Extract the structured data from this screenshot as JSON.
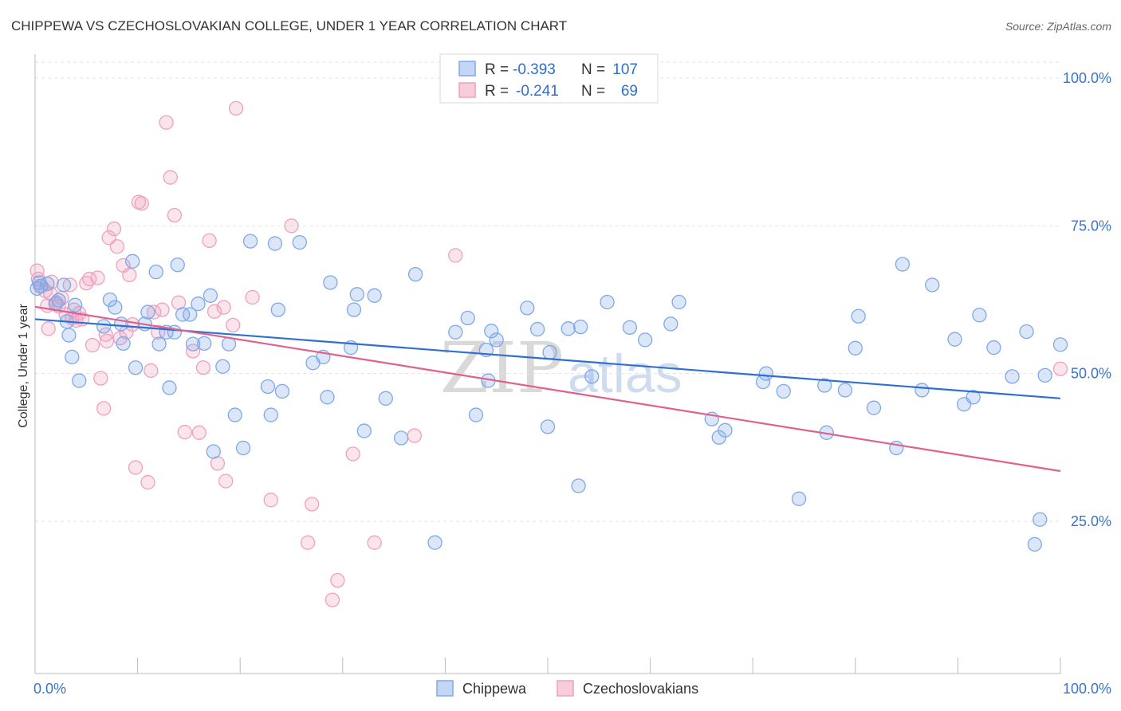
{
  "chart_data": {
    "type": "scatter",
    "title": "CHIPPEWA VS CZECHOSLOVAKIAN COLLEGE, UNDER 1 YEAR CORRELATION CHART",
    "source": "Source: ZipAtlas.com",
    "ylabel": "College, Under 1 year",
    "xlabel": "",
    "xlim": [
      0,
      100
    ],
    "ylim": [
      0,
      105
    ],
    "y_ticks": [
      {
        "value": 100,
        "label": "100.0%"
      },
      {
        "value": 75,
        "label": "75.0%"
      },
      {
        "value": 50,
        "label": "50.0%"
      },
      {
        "value": 25,
        "label": "25.0%"
      }
    ],
    "x_tick_labels": {
      "min": "0.0%",
      "max": "100.0%"
    },
    "grid": true,
    "legend_position": "top-center",
    "watermark": {
      "zip": "ZIP",
      "atlas": "atlas"
    },
    "colors": {
      "chippewa": "#7fa8e8",
      "chippewa_line": "#2f6fd0",
      "czech": "#f0a0bd",
      "czech_line": "#e0608e",
      "grid": "#e3e3e3",
      "axis_text": "#3a74c8"
    },
    "legend": [
      {
        "r_label": "R = ",
        "r_value": "-0.393",
        "n_label": "N = ",
        "n_value": "107"
      },
      {
        "r_label": "R = ",
        "r_value": "-0.241",
        "n_label": "N = ",
        "n_value": "69"
      }
    ],
    "series": [
      {
        "name": "Chippewa",
        "trend": [
          [
            0,
            59.2
          ],
          [
            100,
            45.8
          ]
        ],
        "points": [
          [
            0.2,
            64.4
          ],
          [
            0.4,
            65.4
          ],
          [
            0.6,
            64.8
          ],
          [
            1.2,
            65.2
          ],
          [
            2.0,
            61.8
          ],
          [
            2.3,
            62.4
          ],
          [
            2.8,
            65.0
          ],
          [
            3.1,
            58.8
          ],
          [
            3.3,
            56.5
          ],
          [
            3.6,
            52.8
          ],
          [
            3.9,
            61.6
          ],
          [
            4.3,
            48.8
          ],
          [
            6.7,
            58.0
          ],
          [
            7.3,
            62.5
          ],
          [
            7.8,
            61.2
          ],
          [
            8.4,
            58.4
          ],
          [
            8.6,
            55.1
          ],
          [
            9.5,
            69.0
          ],
          [
            9.8,
            51.0
          ],
          [
            10.7,
            58.4
          ],
          [
            11.0,
            60.4
          ],
          [
            11.8,
            67.2
          ],
          [
            12.1,
            55.0
          ],
          [
            12.8,
            57.0
          ],
          [
            13.1,
            47.6
          ],
          [
            13.6,
            57.0
          ],
          [
            13.9,
            68.4
          ],
          [
            14.4,
            60.0
          ],
          [
            15.1,
            60.0
          ],
          [
            15.4,
            55.0
          ],
          [
            15.9,
            61.8
          ],
          [
            16.5,
            55.1
          ],
          [
            17.1,
            63.2
          ],
          [
            17.4,
            36.8
          ],
          [
            18.3,
            51.2
          ],
          [
            18.9,
            55.0
          ],
          [
            19.5,
            43.0
          ],
          [
            20.3,
            37.4
          ],
          [
            21.0,
            72.4
          ],
          [
            22.7,
            47.8
          ],
          [
            23.0,
            43.0
          ],
          [
            23.4,
            72.0
          ],
          [
            23.7,
            60.8
          ],
          [
            24.1,
            47.0
          ],
          [
            25.8,
            72.2
          ],
          [
            27.1,
            51.8
          ],
          [
            28.1,
            52.8
          ],
          [
            28.5,
            46.0
          ],
          [
            28.8,
            65.4
          ],
          [
            30.8,
            54.4
          ],
          [
            31.1,
            60.8
          ],
          [
            31.4,
            63.4
          ],
          [
            32.1,
            40.3
          ],
          [
            33.1,
            63.2
          ],
          [
            34.2,
            45.8
          ],
          [
            35.7,
            39.1
          ],
          [
            37.1,
            66.8
          ],
          [
            39.0,
            21.4
          ],
          [
            41.0,
            57.0
          ],
          [
            42.2,
            59.4
          ],
          [
            43.0,
            43.0
          ],
          [
            44.0,
            54.0
          ],
          [
            44.2,
            48.8
          ],
          [
            44.5,
            57.2
          ],
          [
            45.0,
            55.7
          ],
          [
            48.0,
            61.1
          ],
          [
            49.0,
            57.5
          ],
          [
            50.0,
            41.0
          ],
          [
            50.2,
            53.6
          ],
          [
            52.0,
            57.6
          ],
          [
            53.0,
            31.0
          ],
          [
            53.2,
            57.9
          ],
          [
            54.3,
            49.5
          ],
          [
            55.8,
            62.1
          ],
          [
            58.0,
            57.8
          ],
          [
            59.5,
            55.7
          ],
          [
            62.0,
            58.4
          ],
          [
            62.8,
            62.1
          ],
          [
            66.0,
            42.3
          ],
          [
            66.7,
            39.2
          ],
          [
            67.3,
            40.4
          ],
          [
            71.0,
            48.6
          ],
          [
            71.3,
            50.0
          ],
          [
            73.0,
            47.0
          ],
          [
            74.5,
            28.8
          ],
          [
            77.0,
            48.0
          ],
          [
            77.2,
            40.0
          ],
          [
            79.0,
            47.2
          ],
          [
            80.0,
            54.3
          ],
          [
            80.3,
            59.7
          ],
          [
            81.8,
            44.2
          ],
          [
            84.0,
            37.4
          ],
          [
            84.6,
            68.5
          ],
          [
            86.5,
            47.2
          ],
          [
            87.5,
            65.0
          ],
          [
            89.7,
            55.8
          ],
          [
            90.6,
            44.8
          ],
          [
            91.5,
            46.0
          ],
          [
            92.1,
            59.9
          ],
          [
            93.5,
            54.4
          ],
          [
            95.3,
            49.5
          ],
          [
            96.7,
            57.1
          ],
          [
            97.5,
            21.1
          ],
          [
            98.0,
            25.3
          ],
          [
            98.5,
            49.7
          ],
          [
            100.0,
            54.9
          ]
        ]
      },
      {
        "name": "Czechoslovakians",
        "trend": [
          [
            0,
            61.3
          ],
          [
            100,
            33.5
          ]
        ],
        "points": [
          [
            0.2,
            67.4
          ],
          [
            0.3,
            66.0
          ],
          [
            0.5,
            64.8
          ],
          [
            1.0,
            64.0
          ],
          [
            1.2,
            61.5
          ],
          [
            1.3,
            57.6
          ],
          [
            1.6,
            65.5
          ],
          [
            2.1,
            62.0
          ],
          [
            2.3,
            61.4
          ],
          [
            2.6,
            62.8
          ],
          [
            3.0,
            60.0
          ],
          [
            3.4,
            65.0
          ],
          [
            3.6,
            59.4
          ],
          [
            4.0,
            59.0
          ],
          [
            4.3,
            60.2
          ],
          [
            4.6,
            59.2
          ],
          [
            5.0,
            65.3
          ],
          [
            5.3,
            66.0
          ],
          [
            5.6,
            54.8
          ],
          [
            6.1,
            66.2
          ],
          [
            6.4,
            49.2
          ],
          [
            6.7,
            44.1
          ],
          [
            7.0,
            55.5
          ],
          [
            7.2,
            73.0
          ],
          [
            7.7,
            74.5
          ],
          [
            8.0,
            71.5
          ],
          [
            8.3,
            56.0
          ],
          [
            8.6,
            68.3
          ],
          [
            8.9,
            57.0
          ],
          [
            9.2,
            66.7
          ],
          [
            9.5,
            58.3
          ],
          [
            9.8,
            34.1
          ],
          [
            10.1,
            79.0
          ],
          [
            10.4,
            78.8
          ],
          [
            11.0,
            31.6
          ],
          [
            11.3,
            50.5
          ],
          [
            11.6,
            60.4
          ],
          [
            12.0,
            57.0
          ],
          [
            12.4,
            60.8
          ],
          [
            12.8,
            92.5
          ],
          [
            13.2,
            83.2
          ],
          [
            13.6,
            76.8
          ],
          [
            14.0,
            62.0
          ],
          [
            14.6,
            40.1
          ],
          [
            15.4,
            53.8
          ],
          [
            16.0,
            40.0
          ],
          [
            16.4,
            51.0
          ],
          [
            17.0,
            72.5
          ],
          [
            17.5,
            60.5
          ],
          [
            17.8,
            34.8
          ],
          [
            18.4,
            61.2
          ],
          [
            18.6,
            31.8
          ],
          [
            19.3,
            58.2
          ],
          [
            19.6,
            94.9
          ],
          [
            21.2,
            62.9
          ],
          [
            23.0,
            28.6
          ],
          [
            25.0,
            75.0
          ],
          [
            26.6,
            21.4
          ],
          [
            27.0,
            27.9
          ],
          [
            29.0,
            11.7
          ],
          [
            29.5,
            15.0
          ],
          [
            31.0,
            36.4
          ],
          [
            33.1,
            21.4
          ],
          [
            37.0,
            39.5
          ],
          [
            41.0,
            70.0
          ],
          [
            100.0,
            50.8
          ],
          [
            1.5,
            63.5
          ],
          [
            3.8,
            60.8
          ],
          [
            6.9,
            56.6
          ]
        ]
      }
    ]
  },
  "bottom_legend": [
    {
      "label": "Chippewa"
    },
    {
      "label": "Czechoslovakians"
    }
  ]
}
